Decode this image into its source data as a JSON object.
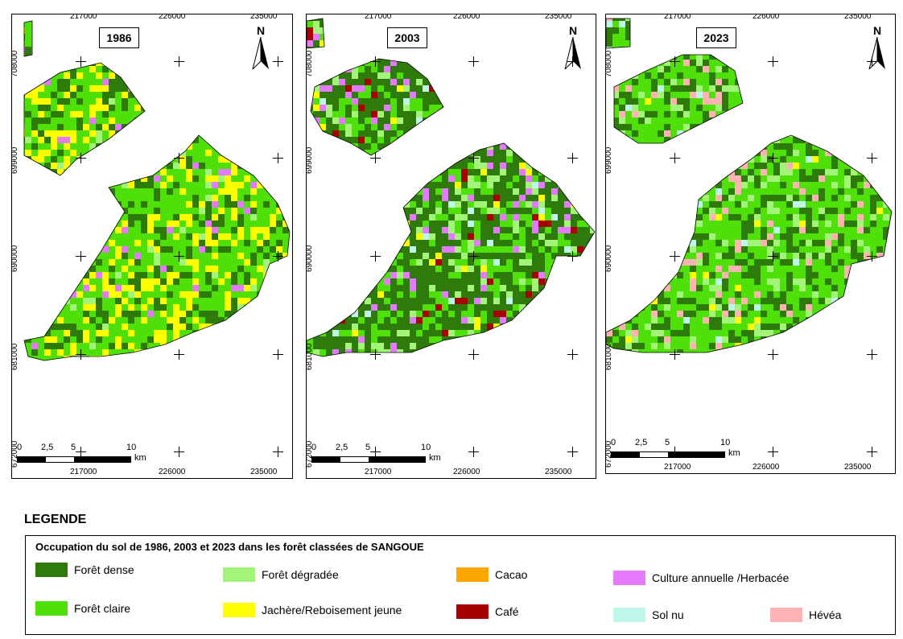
{
  "maps": [
    {
      "year": "1986",
      "top_coords": [
        "217000",
        "226000",
        "235000"
      ],
      "bottom_coords": [
        "217000",
        "226000",
        "235000"
      ],
      "side_coords": [
        "708000",
        "699000",
        "690000",
        "681000",
        "672000"
      ]
    },
    {
      "year": "2003",
      "top_coords": [
        "217000",
        "226000",
        "235000"
      ],
      "bottom_coords": [
        "217000",
        "226000",
        "235000"
      ],
      "side_coords": [
        "708000",
        "699000",
        "690000",
        "681000",
        "672000"
      ]
    },
    {
      "year": "2023",
      "top_coords": [
        "217000",
        "226000",
        "235000"
      ],
      "bottom_coords": [
        "217000",
        "226000",
        "235000"
      ],
      "side_coords": [
        "708000",
        "699000",
        "690000",
        "681000",
        "672000"
      ]
    }
  ],
  "north_label": "N",
  "scale": {
    "ticks": [
      "0",
      "2,5",
      "5",
      "10"
    ],
    "unit": "km"
  },
  "legend": {
    "title": "LEGENDE",
    "caption": "Occupation du sol de 1986, 2003 et 2023 dans les forêt classées de SANGOUE",
    "classes": [
      {
        "name": "Forêt dense",
        "color": "#2e7a0a"
      },
      {
        "name": "Forêt claire",
        "color": "#4fe00a"
      },
      {
        "name": "Forêt dégradée",
        "color": "#a3f57a"
      },
      {
        "name": "Jachère/Reboisement jeune",
        "color": "#ffff00"
      },
      {
        "name": "Cacao",
        "color": "#ffa500"
      },
      {
        "name": "Café",
        "color": "#a80000"
      },
      {
        "name": "Culture annuelle /Herbacée",
        "color": "#e37aff"
      },
      {
        "name": "Sol nu",
        "color": "#bef7ea"
      },
      {
        "name": "Hévéa",
        "color": "#ffb3b3"
      }
    ]
  }
}
